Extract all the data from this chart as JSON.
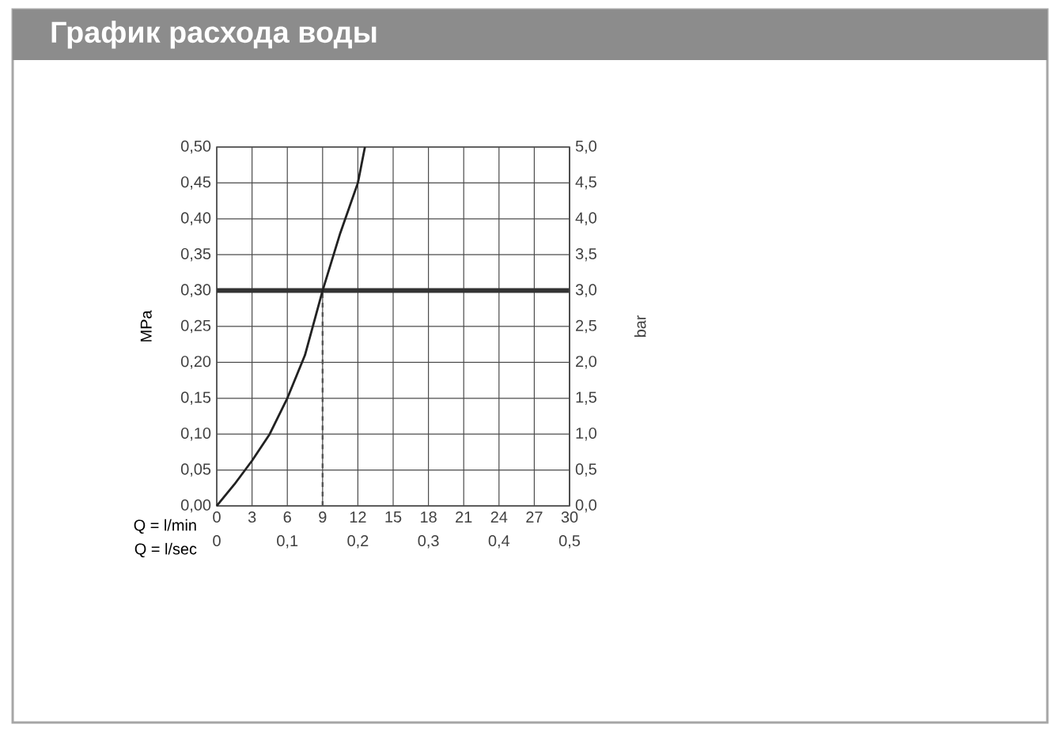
{
  "chart_data": {
    "type": "line",
    "title": "График расхода воды",
    "xlabel": "Q = l/min",
    "ylabel": "MPa",
    "y2label": "bar",
    "x2label": "Q = l/sec",
    "x": [
      0,
      1.5,
      3,
      4.5,
      6,
      7.5,
      9,
      10.5,
      12,
      12.6
    ],
    "series": [
      {
        "color": "#222222",
        "values": [
          0,
          0.03,
          0.063,
          0.1,
          0.15,
          0.21,
          0.3,
          0.38,
          0.45,
          0.5
        ]
      }
    ],
    "xlim": [
      0,
      30
    ],
    "xticks": [
      0,
      3,
      6,
      9,
      12,
      15,
      18,
      21,
      24,
      27,
      30
    ],
    "ylim": [
      0,
      0.5
    ],
    "yticks": [
      {
        "value": 0,
        "label": "0,00"
      },
      {
        "value": 0.05,
        "label": "0,05"
      },
      {
        "value": 0.1,
        "label": "0,10"
      },
      {
        "value": 0.15,
        "label": "0,15"
      },
      {
        "value": 0.2,
        "label": "0,20"
      },
      {
        "value": 0.25,
        "label": "0,25"
      },
      {
        "value": 0.3,
        "label": "0,30"
      },
      {
        "value": 0.35,
        "label": "0,35"
      },
      {
        "value": 0.4,
        "label": "0,40"
      },
      {
        "value": 0.45,
        "label": "0,45"
      },
      {
        "value": 0.5,
        "label": "0,50"
      }
    ],
    "y2lim": [
      0,
      5
    ],
    "y2ticks": [
      {
        "value": 0,
        "label": "0,0"
      },
      {
        "value": 0.5,
        "label": "0,5"
      },
      {
        "value": 1,
        "label": "1,0"
      },
      {
        "value": 1.5,
        "label": "1,5"
      },
      {
        "value": 2,
        "label": "2,0"
      },
      {
        "value": 2.5,
        "label": "2,5"
      },
      {
        "value": 3,
        "label": "3,0"
      },
      {
        "value": 3.5,
        "label": "3,5"
      },
      {
        "value": 4,
        "label": "4,0"
      },
      {
        "value": 4.5,
        "label": "4,5"
      },
      {
        "value": 5,
        "label": "5,0"
      }
    ],
    "x2lim": [
      0,
      0.5
    ],
    "x2ticks": [
      0,
      {
        "value": 0.1,
        "label": "0,1"
      },
      {
        "value": 0.2,
        "label": "0,2"
      },
      {
        "value": 0.3,
        "label": "0,3"
      },
      {
        "value": 0.4,
        "label": "0,4"
      },
      {
        "value": 0.5,
        "label": "0,5"
      }
    ],
    "ref_lines": [
      {
        "axis": "y",
        "value": 0.3,
        "color": "#333333",
        "line_style": "solid"
      },
      {
        "axis": "x",
        "value": 9,
        "color": "#555555",
        "line_style": "dashed"
      }
    ],
    "grid": true,
    "marker": "none",
    "line_style": "solid"
  }
}
